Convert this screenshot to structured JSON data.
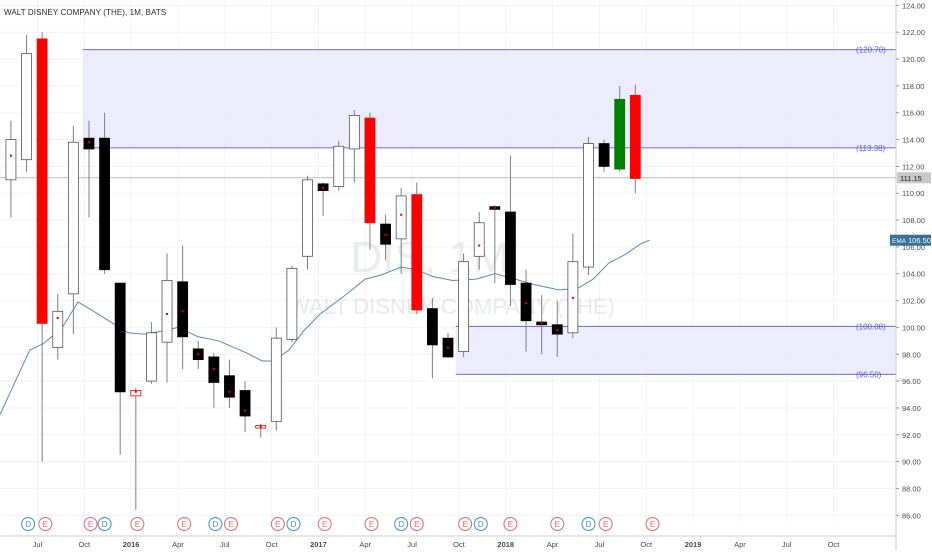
{
  "chart_data": {
    "type": "candlestick",
    "title": "WALT DISNEY COMPANY (THE), 1M, BATS",
    "watermark": {
      "ticker": "DIS, 1M",
      "name": "WALT DISNEY COMPANY (THE)"
    },
    "ylim": [
      85.5,
      124.4
    ],
    "yticks": [
      86,
      88,
      90,
      92,
      94,
      96,
      98,
      100,
      102,
      104,
      106,
      108,
      110,
      112,
      114,
      116,
      118,
      120,
      122,
      124
    ],
    "ytick_labels": [
      "86.00",
      "88.00",
      "90.00",
      "92.00",
      "94.00",
      "96.00",
      "98.00",
      "100.00",
      "102.00",
      "104.00",
      "106.00",
      "108.00",
      "110.00",
      "112.00",
      "114.00",
      "116.00",
      "118.00",
      "120.00",
      "122.00",
      "124.00"
    ],
    "xlim": [
      0,
      57.4
    ],
    "xticks": [
      {
        "x": 2.4,
        "label": "Jul"
      },
      {
        "x": 5.4,
        "label": "Oct"
      },
      {
        "x": 8.4,
        "label": "2016"
      },
      {
        "x": 11.4,
        "label": "Apr"
      },
      {
        "x": 14.4,
        "label": "Jul"
      },
      {
        "x": 17.4,
        "label": "Oct"
      },
      {
        "x": 20.4,
        "label": "2017"
      },
      {
        "x": 23.4,
        "label": "Apr"
      },
      {
        "x": 26.4,
        "label": "Jul"
      },
      {
        "x": 29.4,
        "label": "Oct"
      },
      {
        "x": 32.4,
        "label": "2018"
      },
      {
        "x": 35.4,
        "label": "Apr"
      },
      {
        "x": 38.4,
        "label": "Jul"
      },
      {
        "x": 41.4,
        "label": "Oct"
      },
      {
        "x": 44.4,
        "label": "2019"
      },
      {
        "x": 47.4,
        "label": "Apr"
      },
      {
        "x": 50.4,
        "label": "Jul"
      },
      {
        "x": 53.4,
        "label": "Oct"
      }
    ],
    "candles": [
      {
        "x": 0.7,
        "open": 111.0,
        "close": 114.0,
        "high": 115.4,
        "low": 108.2,
        "color": "white",
        "mark": 112.8
      },
      {
        "x": 1.7,
        "open": 112.5,
        "close": 120.4,
        "high": 121.8,
        "low": 111.6,
        "color": "white"
      },
      {
        "x": 2.7,
        "open": 121.5,
        "close": 100.3,
        "high": 122.0,
        "low": 90.0,
        "color": "red"
      },
      {
        "x": 3.7,
        "open": 98.5,
        "close": 101.2,
        "high": 102.5,
        "low": 97.6,
        "color": "white",
        "mark": 100.7
      },
      {
        "x": 4.7,
        "open": 102.5,
        "close": 113.8,
        "high": 115.0,
        "low": 99.5,
        "color": "white"
      },
      {
        "x": 5.7,
        "open": 114.1,
        "close": 113.3,
        "high": 115.4,
        "low": 108.2,
        "color": "black",
        "mark": 113.8
      },
      {
        "x": 6.7,
        "open": 114.1,
        "close": 104.3,
        "high": 116.0,
        "low": 104.0,
        "color": "black"
      },
      {
        "x": 7.7,
        "open": 103.3,
        "close": 95.2,
        "high": 103.3,
        "low": 90.5,
        "color": "black"
      },
      {
        "x": 8.7,
        "open": 95.3,
        "close": 94.9,
        "high": 95.5,
        "low": 86.4,
        "color": "redopen",
        "mark": 95.2
      },
      {
        "x": 9.7,
        "open": 96.0,
        "close": 99.6,
        "high": 100.4,
        "low": 95.8,
        "color": "white"
      },
      {
        "x": 10.7,
        "open": 98.9,
        "close": 103.5,
        "high": 105.5,
        "low": 95.9,
        "color": "white",
        "mark": 101.0
      },
      {
        "x": 11.7,
        "open": 103.4,
        "close": 99.3,
        "high": 106.1,
        "low": 96.9,
        "color": "black",
        "mark": 101.2
      },
      {
        "x": 12.7,
        "open": 98.4,
        "close": 97.6,
        "high": 99.0,
        "low": 96.9,
        "color": "black",
        "mark": 98.0
      },
      {
        "x": 13.7,
        "open": 97.8,
        "close": 95.9,
        "high": 98.1,
        "low": 94.0,
        "color": "black",
        "mark": 96.9
      },
      {
        "x": 14.7,
        "open": 96.4,
        "close": 94.8,
        "high": 97.6,
        "low": 94.0,
        "color": "black",
        "mark": 95.2
      },
      {
        "x": 15.7,
        "open": 95.3,
        "close": 93.4,
        "high": 96.0,
        "low": 92.2,
        "color": "black",
        "mark": 93.8
      },
      {
        "x": 16.7,
        "open": 92.7,
        "close": 92.5,
        "high": 92.8,
        "low": 91.8,
        "color": "redopen",
        "mark": 92.6
      },
      {
        "x": 17.7,
        "open": 93.0,
        "close": 99.2,
        "high": 100.0,
        "low": 92.3,
        "color": "white"
      },
      {
        "x": 18.7,
        "open": 99.1,
        "close": 104.4,
        "high": 104.6,
        "low": 98.9,
        "color": "white"
      },
      {
        "x": 19.7,
        "open": 105.3,
        "close": 111.0,
        "high": 111.3,
        "low": 104.3,
        "color": "white"
      },
      {
        "x": 20.7,
        "open": 110.7,
        "close": 110.2,
        "high": 110.8,
        "low": 108.3,
        "color": "black",
        "mark": 110.4
      },
      {
        "x": 21.7,
        "open": 110.5,
        "close": 113.5,
        "high": 113.9,
        "low": 110.2,
        "color": "white"
      },
      {
        "x": 22.7,
        "open": 113.3,
        "close": 115.8,
        "high": 116.2,
        "low": 110.8,
        "color": "white"
      },
      {
        "x": 23.7,
        "open": 115.6,
        "close": 107.8,
        "high": 116.0,
        "low": 105.8,
        "color": "red"
      },
      {
        "x": 24.7,
        "open": 107.7,
        "close": 106.2,
        "high": 108.4,
        "low": 105.0,
        "color": "black",
        "mark": 106.9
      },
      {
        "x": 25.7,
        "open": 106.6,
        "close": 109.8,
        "high": 110.4,
        "low": 104.0,
        "color": "white",
        "mark": 108.4
      },
      {
        "x": 26.7,
        "open": 109.9,
        "close": 101.3,
        "high": 110.8,
        "low": 101.0,
        "color": "red"
      },
      {
        "x": 27.7,
        "open": 101.4,
        "close": 98.7,
        "high": 102.2,
        "low": 96.2,
        "color": "black"
      },
      {
        "x": 28.7,
        "open": 99.2,
        "close": 97.8,
        "high": 99.6,
        "low": 97.7,
        "color": "black",
        "mark": 98.5
      },
      {
        "x": 29.7,
        "open": 98.2,
        "close": 104.9,
        "high": 105.5,
        "low": 97.8,
        "color": "white"
      },
      {
        "x": 30.7,
        "open": 105.3,
        "close": 107.8,
        "high": 108.6,
        "low": 104.3,
        "color": "white",
        "mark": 106.1
      },
      {
        "x": 31.7,
        "open": 109.0,
        "close": 108.8,
        "high": 109.1,
        "low": 103.3,
        "color": "black",
        "mark": 108.9
      },
      {
        "x": 32.7,
        "open": 108.6,
        "close": 103.2,
        "high": 112.8,
        "low": 101.6,
        "color": "black"
      },
      {
        "x": 33.7,
        "open": 103.3,
        "close": 100.5,
        "high": 104.3,
        "low": 98.2,
        "color": "black",
        "mark": 101.8
      },
      {
        "x": 34.7,
        "open": 100.4,
        "close": 100.2,
        "high": 102.4,
        "low": 98.0,
        "color": "black",
        "mark": 100.3
      },
      {
        "x": 35.7,
        "open": 100.2,
        "close": 99.5,
        "high": 102.0,
        "low": 97.8,
        "color": "black",
        "mark": 99.8
      },
      {
        "x": 36.7,
        "open": 99.6,
        "close": 104.9,
        "high": 107.0,
        "low": 99.2,
        "color": "white",
        "mark": 102.2
      },
      {
        "x": 37.7,
        "open": 104.5,
        "close": 113.7,
        "high": 114.2,
        "low": 103.9,
        "color": "white"
      },
      {
        "x": 38.7,
        "open": 113.7,
        "close": 112.0,
        "high": 114.0,
        "low": 111.6,
        "color": "black"
      },
      {
        "x": 39.7,
        "open": 111.8,
        "close": 117.0,
        "high": 118.0,
        "low": 111.6,
        "color": "green"
      },
      {
        "x": 40.7,
        "open": 117.3,
        "close": 111.1,
        "high": 118.1,
        "low": 110.0,
        "color": "red"
      }
    ],
    "ema": {
      "label": "EMA",
      "value_label": "106.50",
      "points": [
        [
          0,
          93.5
        ],
        [
          1.9,
          98.3
        ],
        [
          2.8,
          98.8
        ],
        [
          4.0,
          100.0
        ],
        [
          5.0,
          101.9
        ],
        [
          6.0,
          101.2
        ],
        [
          7.1,
          100.4
        ],
        [
          8.2,
          99.6
        ],
        [
          9.2,
          99.5
        ],
        [
          10.3,
          99.7
        ],
        [
          11.4,
          100.0
        ],
        [
          12.7,
          99.3
        ],
        [
          14.0,
          99.0
        ],
        [
          15.8,
          98.1
        ],
        [
          16.8,
          97.5
        ],
        [
          17.5,
          97.5
        ],
        [
          18.5,
          98.3
        ],
        [
          19.5,
          99.8
        ],
        [
          20.5,
          101.0
        ],
        [
          22.0,
          102.3
        ],
        [
          23.4,
          103.6
        ],
        [
          24.4,
          103.9
        ],
        [
          25.7,
          104.5
        ],
        [
          26.7,
          104.3
        ],
        [
          27.7,
          103.8
        ],
        [
          29.0,
          103.5
        ],
        [
          30.5,
          103.6
        ],
        [
          31.7,
          104.0
        ],
        [
          33.0,
          103.6
        ],
        [
          34.2,
          103.2
        ],
        [
          35.8,
          102.8
        ],
        [
          37.0,
          102.9
        ],
        [
          38.0,
          103.6
        ],
        [
          39.0,
          104.8
        ],
        [
          40.0,
          105.4
        ],
        [
          41.0,
          106.2
        ],
        [
          41.6,
          106.5
        ]
      ]
    },
    "last_price": {
      "value": 111.15,
      "label": "111.15"
    },
    "zones": [
      {
        "name": "upper-zone",
        "x0": 5.3,
        "y_top": 120.7,
        "y_bottom": 113.38,
        "top_label": "(120.70)",
        "bottom_label": "(113.38)"
      },
      {
        "name": "lower-zone",
        "x0": 29.2,
        "y_top": 100.08,
        "y_bottom": 96.5,
        "top_label": "(100.08)",
        "bottom_label": "(96.50)"
      }
    ],
    "events": [
      {
        "x": 1.8,
        "label": "D",
        "kind": "dividend"
      },
      {
        "x": 2.9,
        "label": "E",
        "kind": "earnings"
      },
      {
        "x": 5.8,
        "label": "E",
        "kind": "earnings"
      },
      {
        "x": 6.7,
        "label": "D",
        "kind": "dividend"
      },
      {
        "x": 8.8,
        "label": "E",
        "kind": "earnings"
      },
      {
        "x": 11.8,
        "label": "E",
        "kind": "earnings"
      },
      {
        "x": 13.8,
        "label": "D",
        "kind": "dividend"
      },
      {
        "x": 14.8,
        "label": "E",
        "kind": "earnings"
      },
      {
        "x": 17.8,
        "label": "E",
        "kind": "earnings"
      },
      {
        "x": 18.8,
        "label": "D",
        "kind": "dividend"
      },
      {
        "x": 20.8,
        "label": "E",
        "kind": "earnings"
      },
      {
        "x": 23.8,
        "label": "E",
        "kind": "earnings"
      },
      {
        "x": 25.7,
        "label": "D",
        "kind": "dividend"
      },
      {
        "x": 26.7,
        "label": "E",
        "kind": "earnings"
      },
      {
        "x": 29.8,
        "label": "E",
        "kind": "earnings"
      },
      {
        "x": 30.8,
        "label": "D",
        "kind": "dividend"
      },
      {
        "x": 32.7,
        "label": "E",
        "kind": "earnings"
      },
      {
        "x": 35.7,
        "label": "E",
        "kind": "earnings"
      },
      {
        "x": 37.7,
        "label": "D",
        "kind": "dividend"
      },
      {
        "x": 38.8,
        "label": "E",
        "kind": "earnings"
      },
      {
        "x": 41.8,
        "label": "E",
        "kind": "earnings"
      }
    ],
    "colors": {
      "up": "#ffffff",
      "down": "#000000",
      "red": "#ff0000",
      "green": "#008000",
      "zone_fill": "#e9e9fb",
      "zone_line": "#6b6fd3",
      "zone_label": "#5a5fd0",
      "ema_line": "#5c8bb0",
      "ema_badge": "#3a6f97",
      "price_badge": "#c8c8c8",
      "dividend": "#3d8fd6",
      "earnings": "#e06a6a",
      "grid": "#f1f3f6",
      "axis_text": "#4a4a4a"
    },
    "grid": true
  }
}
